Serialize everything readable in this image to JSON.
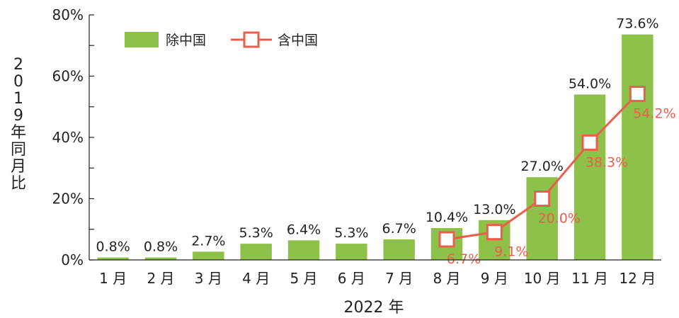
{
  "chart_data": {
    "type": "bar",
    "categories": [
      "1 月",
      "2 月",
      "3 月",
      "4 月",
      "5 月",
      "6 月",
      "7 月",
      "8 月",
      "9 月",
      "10 月",
      "11 月",
      "12 月"
    ],
    "series": [
      {
        "name": "除中国",
        "type": "bar",
        "color": "#8dc149",
        "values": [
          0.8,
          0.8,
          2.7,
          5.3,
          6.4,
          5.3,
          6.7,
          10.4,
          13.0,
          27.0,
          54.0,
          73.6
        ],
        "labels": [
          "0.8%",
          "0.8%",
          "2.7%",
          "5.3%",
          "6.4%",
          "5.3%",
          "6.7%",
          "10.4%",
          "13.0%",
          "27.0%",
          "54.0%",
          "73.6%"
        ]
      },
      {
        "name": "含中国",
        "type": "line",
        "color": "#e8604c",
        "values": [
          null,
          null,
          null,
          null,
          null,
          null,
          null,
          6.7,
          9.1,
          20.0,
          38.3,
          54.2
        ],
        "labels": [
          "",
          "",
          "",
          "",
          "",
          "",
          "",
          "6.7%",
          "9.1%",
          "20.0%",
          "38.3%",
          "54.2%"
        ]
      }
    ],
    "ylim": [
      0,
      80
    ],
    "yticks": [
      0,
      20,
      40,
      60,
      80
    ],
    "ytick_labels": [
      "0%",
      "20%",
      "40%",
      "60%",
      "80%"
    ],
    "xlabel": "2022 年",
    "ylabel": "2019年同月比",
    "legend": "top-left",
    "grid": false
  }
}
